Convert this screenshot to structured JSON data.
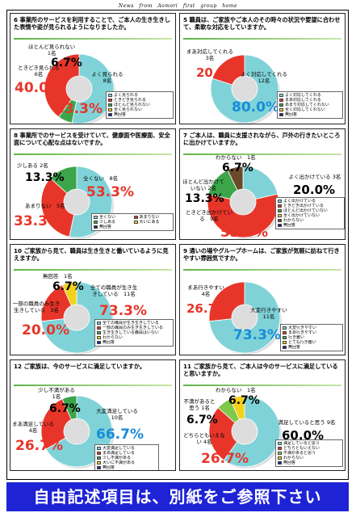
{
  "header": "News　from　Aomori　first　group　home",
  "banner": "自由記述項目は、別紙をご参照下さい",
  "colors": {
    "red": "#e8352a",
    "cyan": "#7fd3d8",
    "green": "#3ca54a",
    "yellow": "#f2d21b",
    "navy": "#1c2a8c",
    "lime": "#7ec84a",
    "brown": "#6b4a2a"
  },
  "chart_data": [
    {
      "type": "pie",
      "title": "6 事業所のサービスを利用することで、ご本人の生き生きした表情や姿が見られるようになりましたか。",
      "labels": [
        "ほとんど見られない\n1名",
        "ときどき見られる\n6名",
        "よく見られる\n8名"
      ],
      "percents": [
        "6.7%",
        "40.0%",
        "53.3%"
      ],
      "legend": [
        "よく見られる",
        "ときどき見られる",
        "ほとんど見られない",
        "全く見られない",
        "無回答"
      ],
      "legend_colors": [
        "#7fd3d8",
        "#e8352a",
        "#3ca54a",
        "#f2d21b",
        "#1c2a8c"
      ],
      "slices": [
        {
          "value": 53.3,
          "color": "#7fd3d8"
        },
        {
          "value": 6.7,
          "color": "#3ca54a"
        },
        {
          "value": 40.0,
          "color": "#e8352a"
        }
      ]
    },
    {
      "type": "pie",
      "title": "5 職員は、ご家族やご本人のその時々の状況や要望に合わせて、柔軟な対応をしていますか。",
      "labels": [
        "まあ対応してくれる\n3名",
        "よく対応してくれる\n12名"
      ],
      "percents": [
        "20.0%",
        "80.0%"
      ],
      "legend": [
        "よく対応してくれる",
        "まあ対応してくれる",
        "あまり対応してくれない",
        "全く対応してくれない",
        "無回答"
      ],
      "legend_colors": [
        "#7fd3d8",
        "#e8352a",
        "#3ca54a",
        "#f2d21b",
        "#1c2a8c"
      ],
      "slices": [
        {
          "value": 80.0,
          "color": "#7fd3d8"
        },
        {
          "value": 20.0,
          "color": "#e8352a"
        }
      ]
    },
    {
      "type": "pie",
      "title": "8 事業所でのサービスを受けていて、健康面や医療面、安全面について心配な点はないですか。",
      "labels": [
        "少しある 2名",
        "全くない　8名",
        "あまりない　5名"
      ],
      "percents": [
        "13.3%",
        "53.3%",
        "33.3%"
      ],
      "legend": [
        "全くない",
        "あまりない",
        "少しある",
        "大いにある",
        "無回答"
      ],
      "legend_colors": [
        "#7fd3d8",
        "#e8352a",
        "#3ca54a",
        "#f2d21b",
        "#1c2a8c"
      ],
      "slices": [
        {
          "value": 53.3,
          "color": "#7fd3d8"
        },
        {
          "value": 33.3,
          "color": "#e8352a"
        },
        {
          "value": 13.3,
          "color": "#3ca54a"
        }
      ]
    },
    {
      "type": "pie",
      "title": "7 ご本人は、職員に支援されながら、戸外の行きたいところに出かけていますか。",
      "labels": [
        "わからない　1名",
        "よく出かけている 3名",
        "ほとんど出かけていない 2名",
        "ときどき出かけている　9名"
      ],
      "percents": [
        "6.7%",
        "20.0%",
        "13.3%",
        "53.3%"
      ],
      "legend": [
        "よく出かけている",
        "ときどき出かけている",
        "ほとんど出かけていない",
        "全く出かけていない",
        "わからない",
        "無回答"
      ],
      "legend_colors": [
        "#7fd3d8",
        "#e8352a",
        "#3ca54a",
        "#f2d21b",
        "#6b4a2a",
        "#1c2a8c"
      ],
      "slices": [
        {
          "value": 20.0,
          "color": "#7fd3d8"
        },
        {
          "value": 53.3,
          "color": "#e8352a"
        },
        {
          "value": 13.3,
          "color": "#3ca54a"
        },
        {
          "value": 6.7,
          "color": "#6b4a2a"
        }
      ]
    },
    {
      "type": "pie",
      "title": "10 ご家族から見て、職員は生き生きと働いているように見えますか。",
      "labels": [
        "無回答　1名",
        "全ての職員が生き生きしている　11名",
        "一部の職員のみ生き生きしている　3名"
      ],
      "percents": [
        "6.7%",
        "73.3%",
        "20.0%"
      ],
      "legend": [
        "全ての職員が生き生きしている",
        "一部の職員のみ生き生きしている",
        "生き生きしている職員はいない",
        "わからない",
        "無回答"
      ],
      "legend_colors": [
        "#7fd3d8",
        "#e8352a",
        "#3ca54a",
        "#f2d21b",
        "#1c2a8c"
      ],
      "slices": [
        {
          "value": 73.3,
          "color": "#7fd3d8"
        },
        {
          "value": 20.0,
          "color": "#e8352a"
        },
        {
          "value": 6.7,
          "color": "#f2d21b"
        }
      ]
    },
    {
      "type": "pie",
      "title": "9 通いの場やグループホームは、ご家族が気軽に訪ねて行きやすい雰囲気ですか。",
      "labels": [
        "まあ行きやすい\n4名",
        "大変行きやすい\n11名"
      ],
      "percents": [
        "26.7%",
        "73.3%"
      ],
      "legend": [
        "大変行きやすい",
        "まあ行きやすい",
        "行き難い",
        "とても行き難い",
        "無回答"
      ],
      "legend_colors": [
        "#7fd3d8",
        "#e8352a",
        "#3ca54a",
        "#f2d21b",
        "#1c2a8c"
      ],
      "slices": [
        {
          "value": 73.3,
          "color": "#7fd3d8"
        },
        {
          "value": 26.7,
          "color": "#e8352a"
        }
      ]
    },
    {
      "type": "pie",
      "title": "12 ご家族は、今のサービスに満足していますか。",
      "labels": [
        "少し不満がある　1名",
        "大変満足している\n10名",
        "まあ満足している　4名"
      ],
      "percents": [
        "6.7%",
        "66.7%",
        "26.7%"
      ],
      "legend": [
        "大変満足している",
        "まあ満足している",
        "少し不満がある",
        "大いに不満がある",
        "無回答"
      ],
      "legend_colors": [
        "#7fd3d8",
        "#e8352a",
        "#3ca54a",
        "#f2d21b",
        "#1c2a8c"
      ],
      "slices": [
        {
          "value": 66.7,
          "color": "#7fd3d8"
        },
        {
          "value": 26.7,
          "color": "#e8352a"
        },
        {
          "value": 6.7,
          "color": "#3ca54a"
        }
      ]
    },
    {
      "type": "pie",
      "title": "11 ご家族から見て、ご本人は今のサービスに満足していると思いますか。",
      "labels": [
        "わからない　1名",
        "不満があると思う 1名",
        "満足していると思う 9名",
        "どちらともいえない 4名"
      ],
      "percents": [
        "6.7%",
        "6.7%",
        "60.0%",
        "26.7%"
      ],
      "legend": [
        "満足していると思う",
        "どちらともいえない",
        "不満があると思う",
        "わからない",
        "無回答"
      ],
      "legend_colors": [
        "#7fd3d8",
        "#e8352a",
        "#7ec84a",
        "#f2d21b",
        "#1c2a8c"
      ],
      "slices": [
        {
          "value": 60.0,
          "color": "#7fd3d8"
        },
        {
          "value": 26.7,
          "color": "#e8352a"
        },
        {
          "value": 6.7,
          "color": "#7ec84a"
        },
        {
          "value": 6.7,
          "color": "#f2d21b"
        }
      ]
    }
  ]
}
